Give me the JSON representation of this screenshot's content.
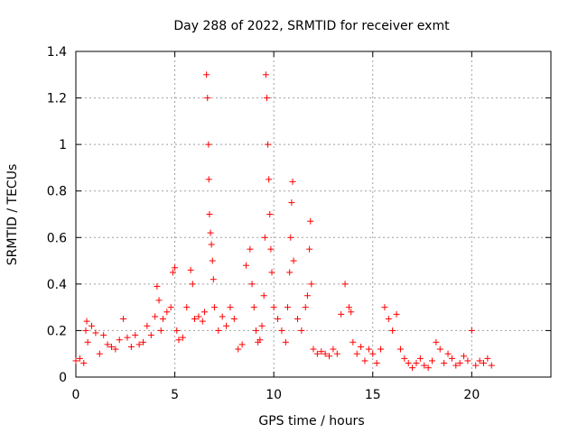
{
  "chart_data": {
    "type": "scatter",
    "title": "Day 288 of 2022, SRMTID for receiver exmt",
    "xlabel": "GPS time / hours",
    "ylabel": "SRMTID / TECUs",
    "xlim": [
      0,
      24
    ],
    "ylim": [
      0,
      1.4
    ],
    "xticks": [
      0,
      5,
      10,
      15,
      20
    ],
    "xtick_labels": [
      "0",
      "5",
      "10",
      "15",
      "20"
    ],
    "yticks": [
      0,
      0.2,
      0.4,
      0.6,
      0.8,
      1.0,
      1.2,
      1.4
    ],
    "ytick_labels": [
      "0",
      "0.2",
      "0.4",
      "0.6",
      "0.8",
      "1",
      "1.2",
      "1.4"
    ],
    "grid": true,
    "marker": "+",
    "color": "#ff0000",
    "series": [
      {
        "name": "SRMTID",
        "x": [
          0.0,
          0.2,
          0.4,
          0.5,
          0.55,
          0.6,
          0.8,
          1.0,
          1.2,
          1.4,
          1.6,
          1.8,
          2.0,
          2.2,
          2.4,
          2.6,
          2.8,
          3.0,
          3.2,
          3.4,
          3.6,
          3.8,
          4.0,
          4.1,
          4.2,
          4.3,
          4.4,
          4.6,
          4.8,
          4.9,
          5.0,
          5.1,
          5.2,
          5.4,
          5.6,
          5.8,
          5.9,
          6.0,
          6.2,
          6.4,
          6.5,
          6.6,
          6.65,
          6.7,
          6.72,
          6.75,
          6.8,
          6.85,
          6.9,
          6.95,
          7.0,
          7.2,
          7.4,
          7.6,
          7.8,
          8.0,
          8.2,
          8.4,
          8.6,
          8.8,
          8.9,
          9.0,
          9.1,
          9.2,
          9.3,
          9.4,
          9.5,
          9.55,
          9.6,
          9.65,
          9.7,
          9.75,
          9.8,
          9.85,
          9.9,
          10.0,
          10.2,
          10.4,
          10.6,
          10.7,
          10.8,
          10.85,
          10.9,
          10.95,
          11.0,
          11.2,
          11.4,
          11.6,
          11.7,
          11.8,
          11.85,
          11.9,
          12.0,
          12.2,
          12.4,
          12.6,
          12.8,
          13.0,
          13.2,
          13.4,
          13.6,
          13.8,
          13.9,
          14.0,
          14.2,
          14.4,
          14.6,
          14.8,
          15.0,
          15.2,
          15.4,
          15.6,
          15.8,
          16.0,
          16.2,
          16.4,
          16.6,
          16.8,
          17.0,
          17.2,
          17.4,
          17.6,
          17.8,
          18.0,
          18.2,
          18.4,
          18.6,
          18.8,
          19.0,
          19.2,
          19.4,
          19.6,
          19.8,
          20.0,
          20.2,
          20.4,
          20.6,
          20.8,
          21.0
        ],
        "values": [
          0.07,
          0.08,
          0.06,
          0.2,
          0.24,
          0.15,
          0.22,
          0.19,
          0.1,
          0.18,
          0.14,
          0.13,
          0.12,
          0.16,
          0.25,
          0.17,
          0.13,
          0.18,
          0.14,
          0.15,
          0.22,
          0.18,
          0.26,
          0.39,
          0.33,
          0.2,
          0.25,
          0.28,
          0.3,
          0.45,
          0.47,
          0.2,
          0.16,
          0.17,
          0.3,
          0.46,
          0.4,
          0.25,
          0.26,
          0.24,
          0.28,
          1.3,
          1.2,
          1.0,
          0.85,
          0.7,
          0.62,
          0.57,
          0.5,
          0.42,
          0.3,
          0.2,
          0.26,
          0.22,
          0.3,
          0.25,
          0.12,
          0.14,
          0.48,
          0.55,
          0.4,
          0.3,
          0.2,
          0.15,
          0.16,
          0.22,
          0.35,
          0.6,
          1.3,
          1.2,
          1.0,
          0.85,
          0.7,
          0.55,
          0.45,
          0.3,
          0.25,
          0.2,
          0.15,
          0.3,
          0.45,
          0.6,
          0.75,
          0.84,
          0.5,
          0.25,
          0.2,
          0.3,
          0.35,
          0.55,
          0.67,
          0.4,
          0.12,
          0.1,
          0.11,
          0.1,
          0.09,
          0.12,
          0.1,
          0.27,
          0.4,
          0.3,
          0.28,
          0.15,
          0.1,
          0.13,
          0.07,
          0.12,
          0.1,
          0.06,
          0.12,
          0.3,
          0.25,
          0.2,
          0.27,
          0.12,
          0.08,
          0.06,
          0.04,
          0.06,
          0.08,
          0.05,
          0.04,
          0.07,
          0.15,
          0.12,
          0.06,
          0.1,
          0.08,
          0.05,
          0.06,
          0.09,
          0.07,
          0.2,
          0.05,
          0.07,
          0.06,
          0.08,
          0.05
        ]
      }
    ]
  }
}
